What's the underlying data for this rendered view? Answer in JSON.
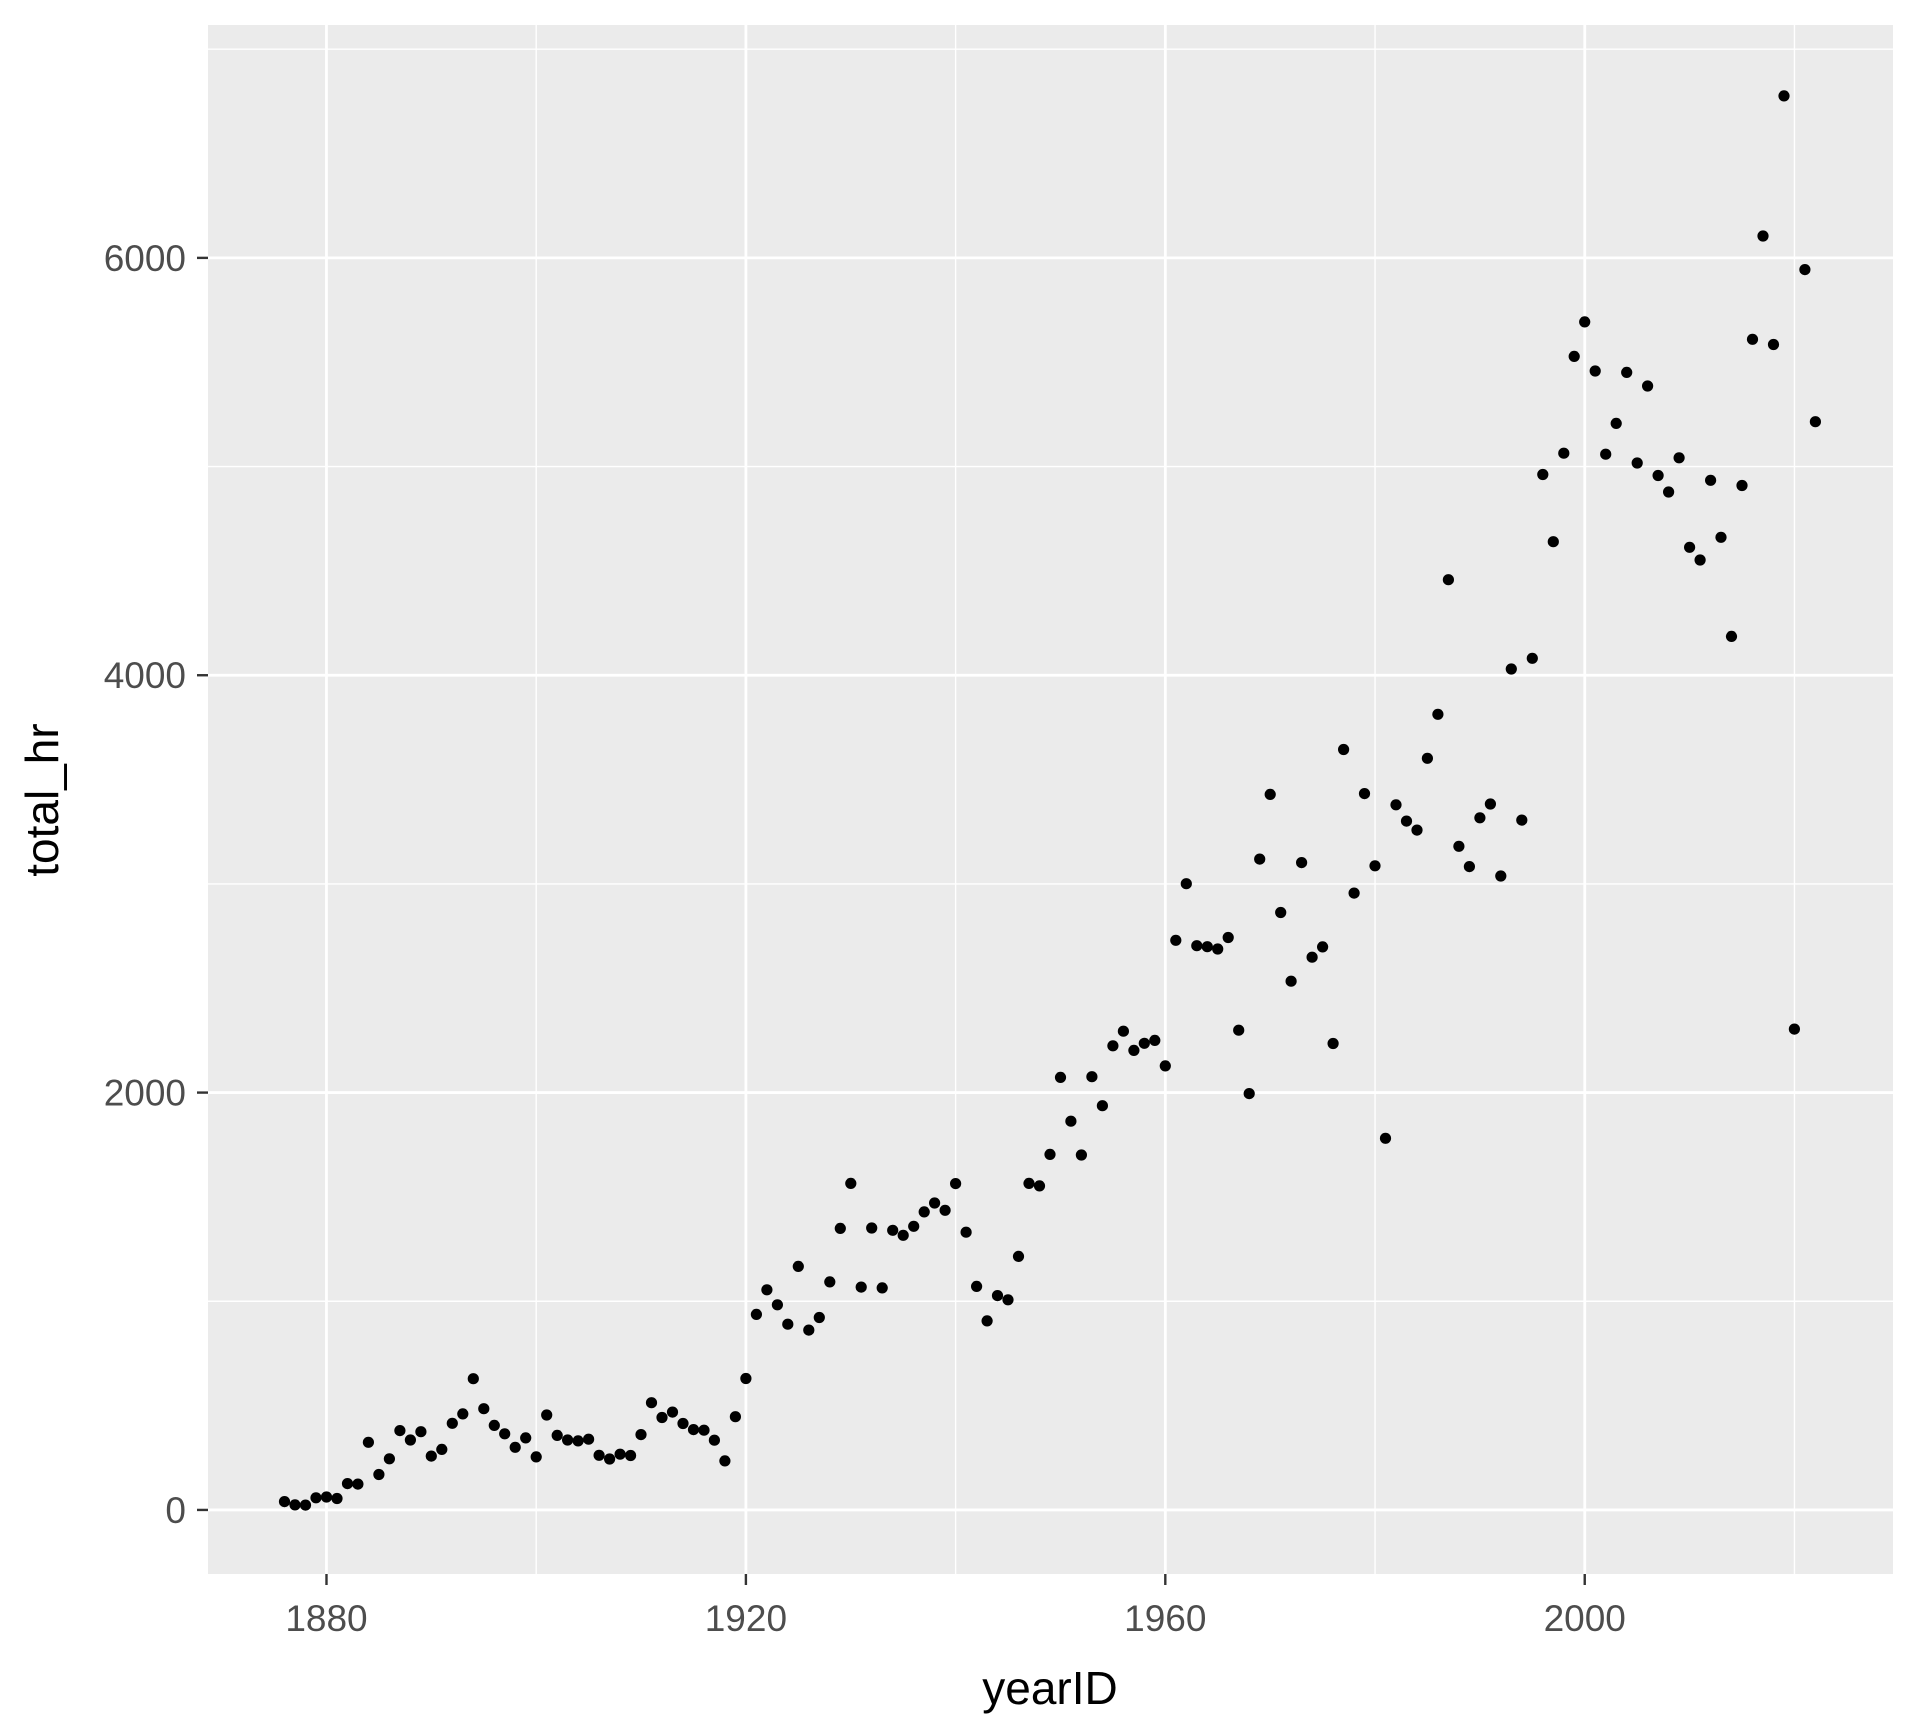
{
  "figure": {
    "kind": "ggplot-style scatter plot",
    "background_color": "#FFFFFF"
  },
  "chart_data": {
    "type": "scatter",
    "title": "",
    "xlabel": "yearID",
    "ylabel": "total_hr",
    "legend": "none",
    "grid": true,
    "x_domain": [
      1868.7,
      2029.4
    ],
    "y_domain": [
      -307,
      7116
    ],
    "x_major_breaks": [
      1880,
      1920,
      1960,
      2000
    ],
    "x_minor_breaks": [
      1900,
      1940,
      1980,
      2020
    ],
    "y_major_breaks": [
      0,
      2000,
      4000,
      6000
    ],
    "y_minor_breaks": [
      1000,
      3000,
      5000,
      7000
    ],
    "x_tick_labels": [
      "1880",
      "1920",
      "1960",
      "2000"
    ],
    "y_tick_labels": [
      "0",
      "2000",
      "4000",
      "6000"
    ],
    "x": [
      1876,
      1877,
      1878,
      1879,
      1880,
      1881,
      1882,
      1883,
      1884,
      1885,
      1886,
      1887,
      1888,
      1889,
      1890,
      1891,
      1892,
      1893,
      1894,
      1895,
      1896,
      1897,
      1898,
      1899,
      1900,
      1901,
      1902,
      1903,
      1904,
      1905,
      1906,
      1907,
      1908,
      1909,
      1910,
      1911,
      1912,
      1913,
      1914,
      1915,
      1916,
      1917,
      1918,
      1919,
      1920,
      1921,
      1922,
      1923,
      1924,
      1925,
      1926,
      1927,
      1928,
      1929,
      1930,
      1931,
      1932,
      1933,
      1934,
      1935,
      1936,
      1937,
      1938,
      1939,
      1940,
      1941,
      1942,
      1943,
      1944,
      1945,
      1946,
      1947,
      1948,
      1949,
      1950,
      1951,
      1952,
      1953,
      1954,
      1955,
      1956,
      1957,
      1958,
      1959,
      1960,
      1961,
      1962,
      1963,
      1964,
      1965,
      1966,
      1967,
      1968,
      1969,
      1970,
      1971,
      1972,
      1973,
      1974,
      1975,
      1976,
      1977,
      1978,
      1979,
      1980,
      1981,
      1982,
      1983,
      1984,
      1985,
      1986,
      1987,
      1988,
      1989,
      1990,
      1991,
      1992,
      1993,
      1994,
      1995,
      1996,
      1997,
      1998,
      1999,
      2000,
      2001,
      2002,
      2003,
      2004,
      2005,
      2006,
      2007,
      2008,
      2009,
      2010,
      2011,
      2012,
      2013,
      2014,
      2015,
      2016,
      2017,
      2018,
      2019,
      2020,
      2021,
      2022
    ],
    "y": [
      40,
      24,
      23,
      58,
      62,
      55,
      126,
      124,
      324,
      170,
      245,
      380,
      335,
      375,
      258,
      290,
      415,
      460,
      629,
      485,
      405,
      365,
      300,
      345,
      254,
      455,
      357,
      335,
      331,
      339,
      262,
      244,
      267,
      261,
      361,
      514,
      443,
      469,
      414,
      385,
      382,
      334,
      235,
      447,
      630,
      937,
      1055,
      983,
      890,
      1167,
      862,
      922,
      1093,
      1349,
      1565,
      1068,
      1351,
      1064,
      1340,
      1316,
      1359,
      1428,
      1471,
      1436,
      1564,
      1331,
      1071,
      906,
      1027,
      1007,
      1215,
      1565,
      1553,
      1704,
      2073,
      1863,
      1701,
      2076,
      1937,
      2224,
      2294,
      2202,
      2236,
      2250,
      2128,
      2730,
      3001,
      2704,
      2699,
      2688,
      2743,
      2299,
      1995,
      3119,
      3429,
      2863,
      2534,
      3102,
      2649,
      2698,
      2235,
      3644,
      2956,
      3433,
      3087,
      1781,
      3379,
      3301,
      3258,
      3602,
      3813,
      4458,
      3180,
      3083,
      3317,
      3383,
      3038,
      4030,
      3306,
      4081,
      4962,
      4640,
      5064,
      5528,
      5693,
      5458,
      5059,
      5207,
      5451,
      5017,
      5386,
      4957,
      4878,
      5042,
      4613,
      4552,
      4934,
      4661,
      4186,
      4909,
      5610,
      6105,
      5585,
      6776,
      2304,
      5944,
      5215
    ],
    "style": {
      "panel_bg": "#EBEBEB",
      "grid_color": "#FFFFFF",
      "point_color": "#000000",
      "tick_label_color": "#4D4D4D",
      "axis_title_color": "#000000",
      "tick_mark_color": "#333333"
    }
  }
}
